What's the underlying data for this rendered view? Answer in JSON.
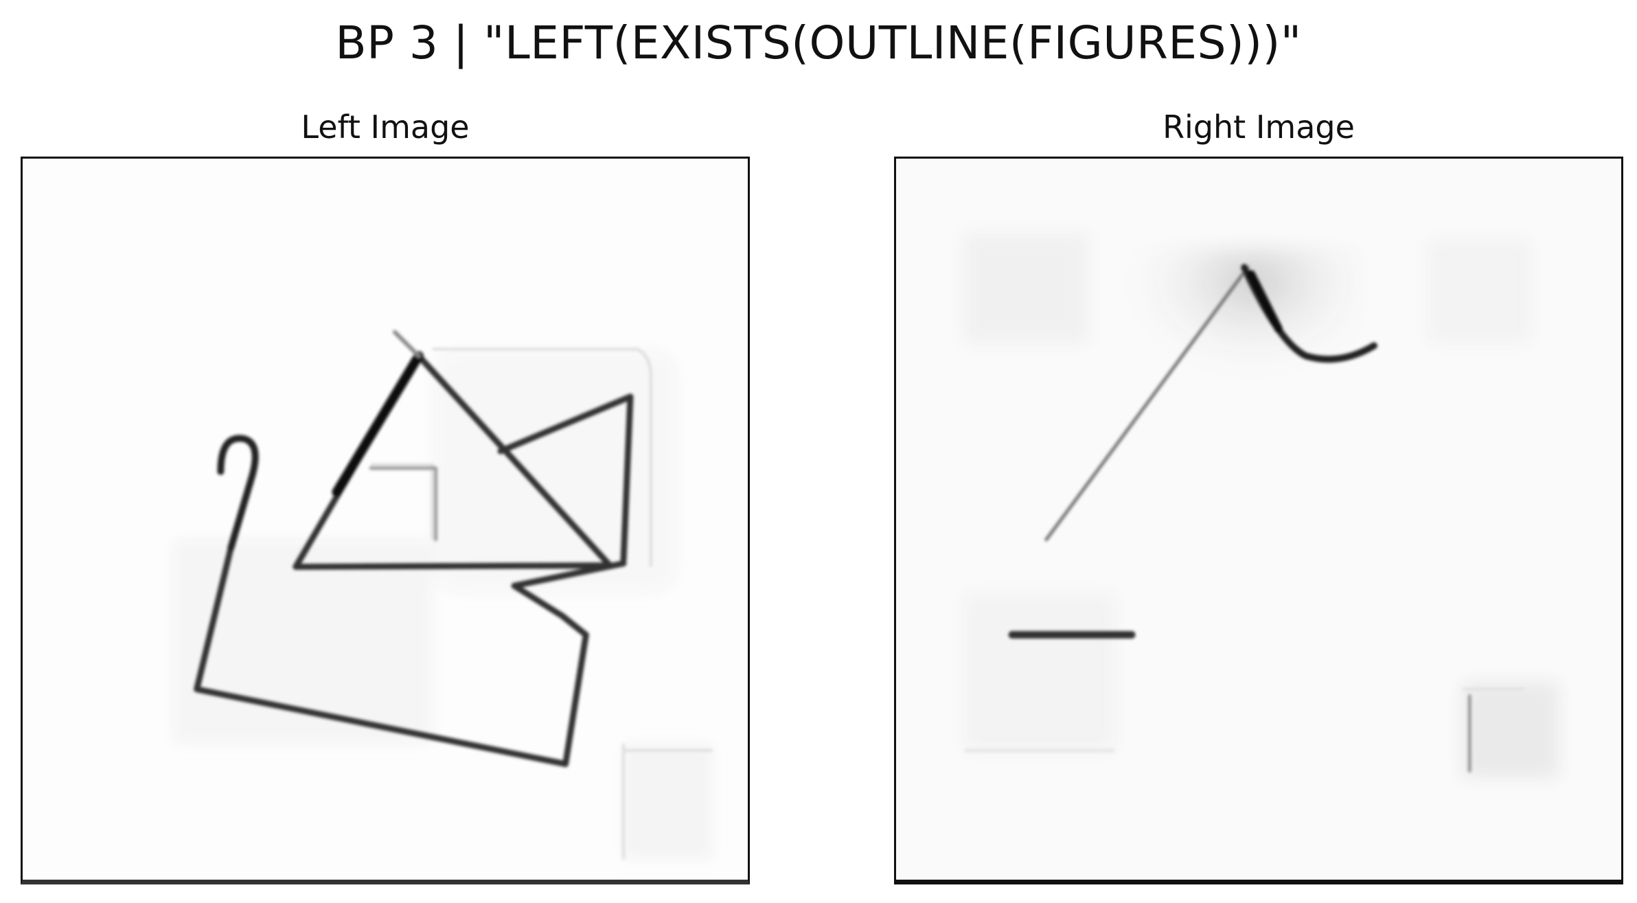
{
  "figure": {
    "title": "BP 3 | \"LEFT(EXISTS(OUTLINE(FIGURES)))\""
  },
  "left_panel": {
    "title": "Left Image",
    "colors": {
      "stroke": "#2a2a2a",
      "ghost": "#d8d8d8",
      "background": "#fdfdfd"
    }
  },
  "right_panel": {
    "title": "Right Image",
    "colors": {
      "stroke": "#2a2a2a",
      "ghost": "#dcdcdc",
      "background": "#fafafa"
    }
  }
}
